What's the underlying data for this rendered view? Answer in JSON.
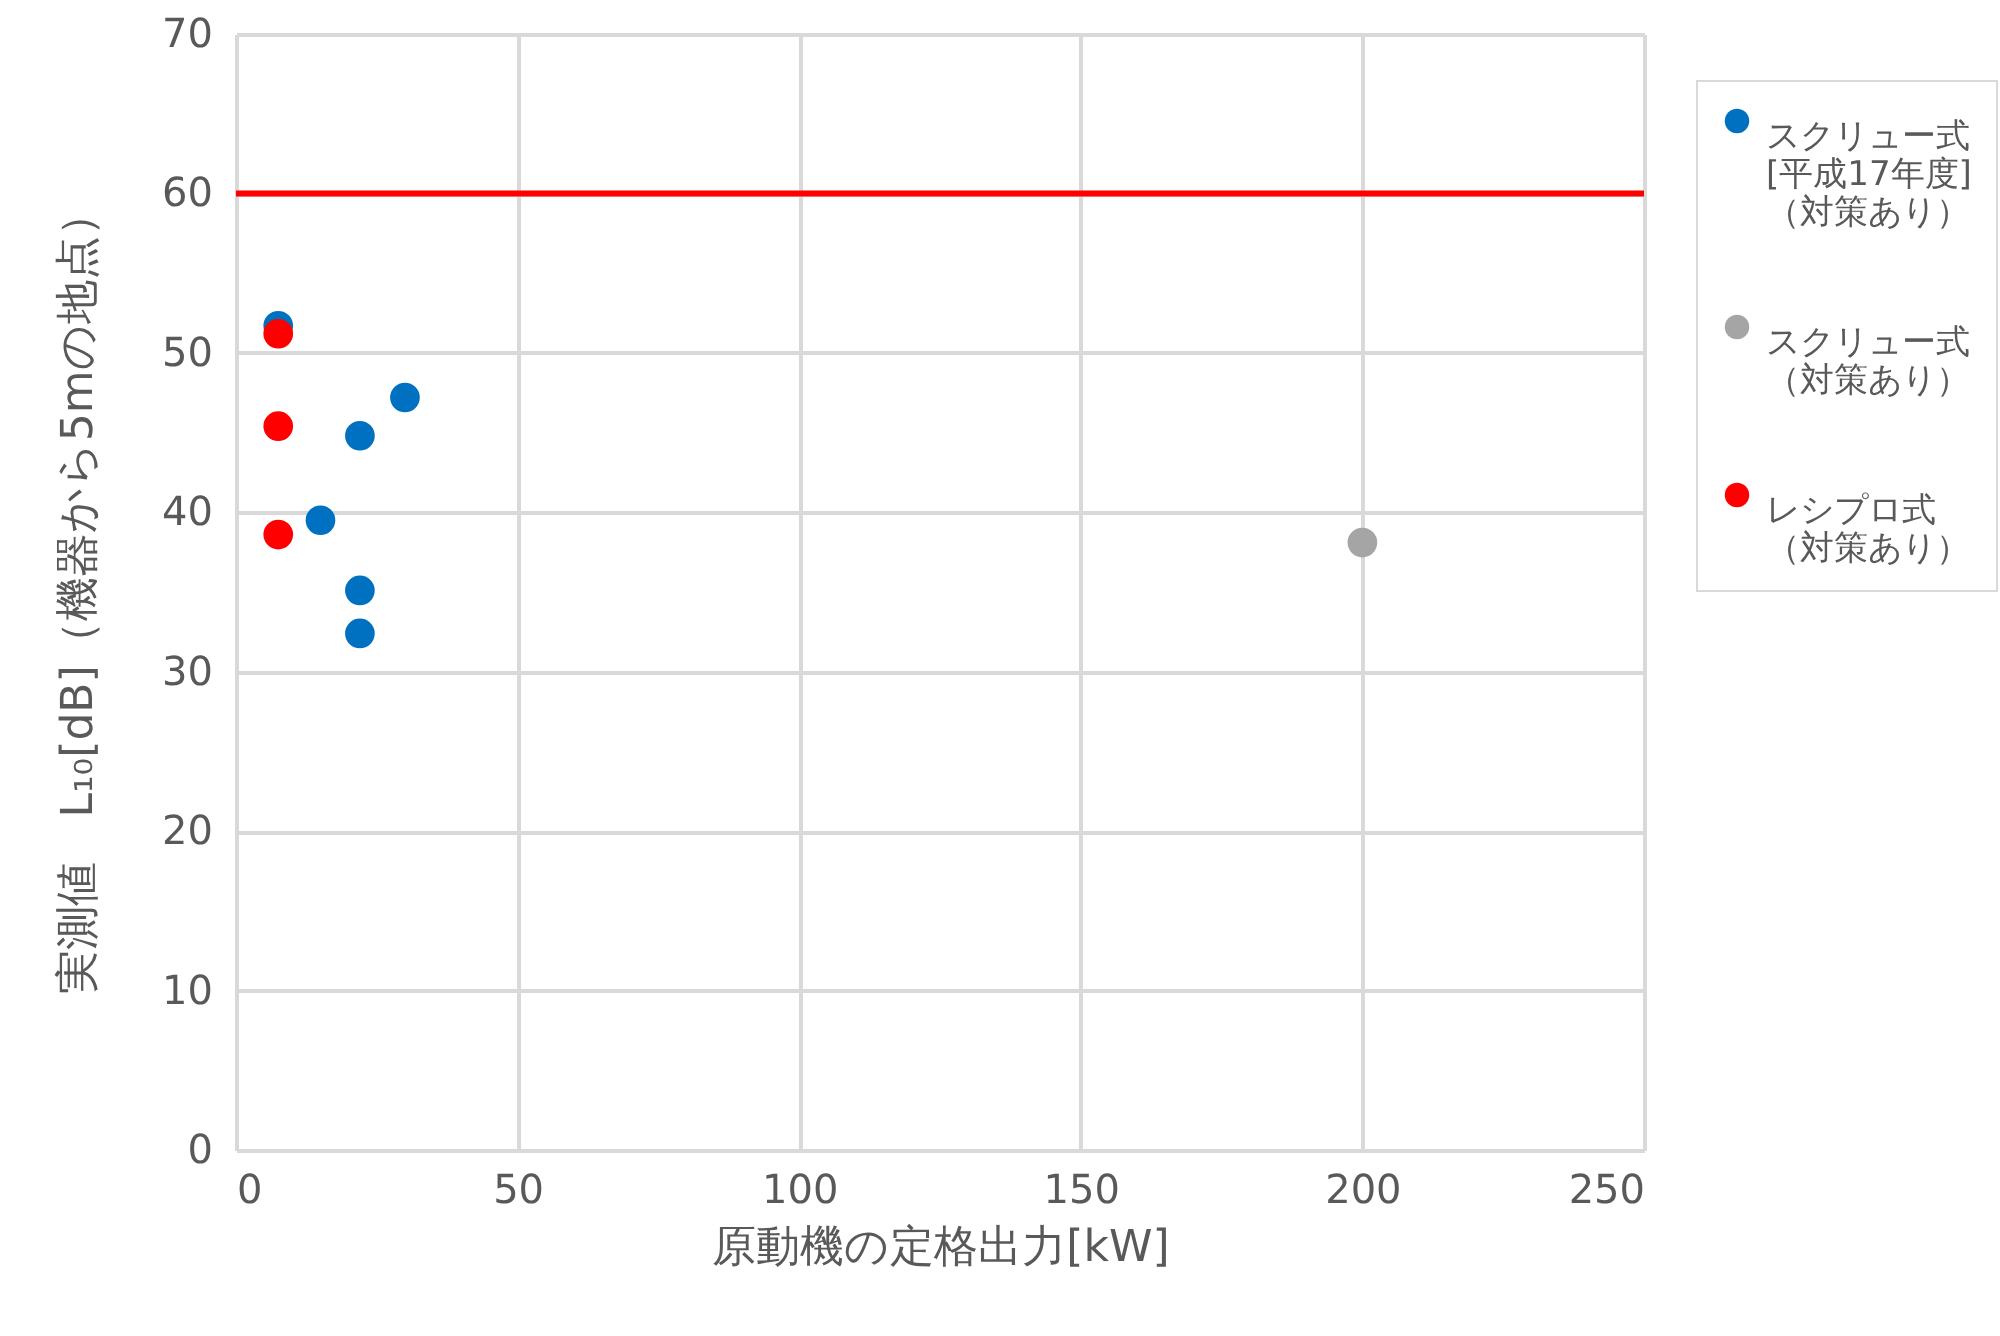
{
  "chart_data": {
    "type": "scatter",
    "xlabel": "原動機の定格出力[kW]",
    "ylabel": "実測値　L₁₀[dB]（機器から5mの地点）",
    "xlim": [
      0,
      250
    ],
    "xticks": [
      0,
      50,
      100,
      150,
      200,
      250
    ],
    "ylim": [
      0,
      70
    ],
    "yticks": [
      0,
      10,
      20,
      30,
      40,
      50,
      60,
      70
    ],
    "grid": true,
    "legend": "right",
    "marker": "circle",
    "series": [
      {
        "name": "スクリュー式[平成17年度]（対策あり）",
        "color": "#0070c0",
        "x": [
          7.5,
          30,
          22,
          15,
          22,
          22
        ],
        "values": [
          51.7,
          47.2,
          44.8,
          39.5,
          35.1,
          32.4
        ]
      },
      {
        "name": "スクリュー式（対策あり）",
        "color": "#a5a5a5",
        "x": [
          200
        ],
        "values": [
          38.1
        ]
      },
      {
        "name": "レシプロ式（対策あり）",
        "color": "#ff0000",
        "x": [
          7.5,
          7.5,
          7.5
        ],
        "values": [
          51.2,
          45.4,
          38.6
        ]
      }
    ],
    "ref_lines": [
      {
        "axis": "y",
        "value": 60,
        "color": "#ff0000",
        "line_style": "solid"
      }
    ]
  }
}
